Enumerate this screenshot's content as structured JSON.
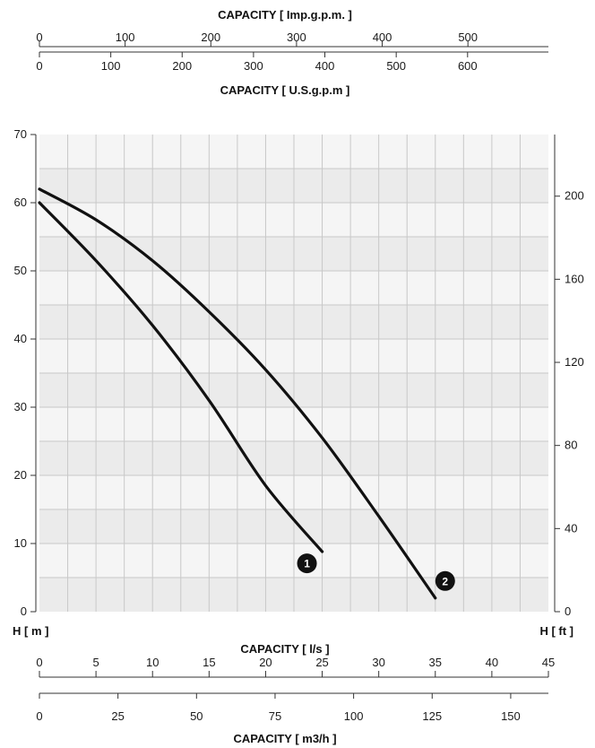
{
  "chart_data": {
    "type": "line",
    "series": [
      {
        "name": "1",
        "x": [
          0,
          5,
          10,
          15,
          20,
          25
        ],
        "y": [
          60,
          51.5,
          42,
          31,
          18.5,
          8.8
        ]
      },
      {
        "name": "2",
        "x": [
          0,
          5,
          10,
          15,
          20,
          25,
          30,
          35
        ],
        "y": [
          62,
          57.5,
          51.5,
          44,
          35.5,
          25.5,
          14,
          2
        ]
      }
    ],
    "axes": {
      "bottom": {
        "label": "CAPACITY [ l/s ]",
        "ticks": [
          0,
          5,
          10,
          15,
          20,
          25,
          30,
          35,
          40,
          45
        ],
        "range": [
          0,
          45
        ]
      },
      "bottom2": {
        "label": "CAPACITY [ m3/h ]",
        "ticks": [
          0,
          25,
          50,
          75,
          100,
          125,
          150
        ]
      },
      "top1": {
        "label": "CAPACITY [ Imp.g.p.m. ]",
        "ticks": [
          0,
          100,
          200,
          300,
          400,
          500
        ]
      },
      "top2": {
        "label": "CAPACITY [ U.S.g.p.m ]",
        "ticks": [
          0,
          100,
          200,
          300,
          400,
          500,
          600
        ]
      },
      "left": {
        "label": "H [ m ]",
        "ticks": [
          0,
          10,
          20,
          30,
          40,
          50,
          60,
          70
        ],
        "range": [
          0,
          70
        ]
      },
      "right": {
        "label": "H [ ft ]",
        "ticks": [
          0,
          40,
          80,
          120,
          160,
          200
        ]
      }
    },
    "grid": true,
    "curve_markers": [
      "1",
      "2"
    ]
  }
}
